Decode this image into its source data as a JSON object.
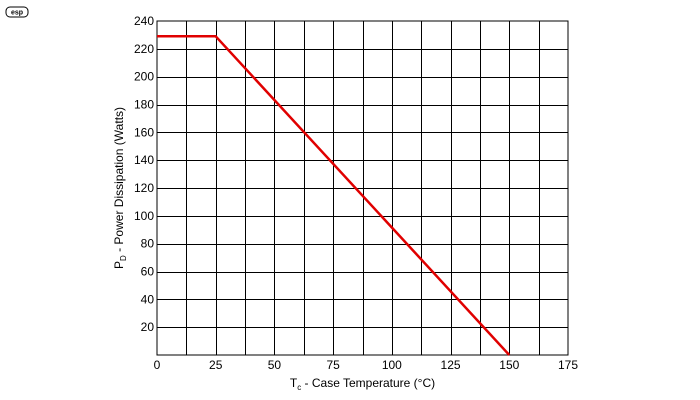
{
  "logo": {
    "text": "esp"
  },
  "chart_data": {
    "type": "line",
    "title": "",
    "xlabel": {
      "symbol": "T",
      "subscript": "c",
      "text": " - Case Temperature (°C)"
    },
    "ylabel": {
      "symbol": "P",
      "subscript": "D",
      "text": " - Power Dissipation (Watts)"
    },
    "xlim": [
      0,
      175
    ],
    "ylim": [
      0,
      240
    ],
    "xticks": [
      0,
      25,
      50,
      75,
      100,
      125,
      150,
      175
    ],
    "yticks": [
      20,
      40,
      60,
      80,
      100,
      120,
      140,
      160,
      180,
      200,
      220,
      240
    ],
    "x_minor_step": 12.5,
    "y_minor_step": 20,
    "grid": true,
    "series": [
      {
        "color": "#e00000",
        "points": [
          {
            "x": 0,
            "y": 229
          },
          {
            "x": 25,
            "y": 229
          },
          {
            "x": 150,
            "y": 0
          }
        ]
      }
    ]
  }
}
